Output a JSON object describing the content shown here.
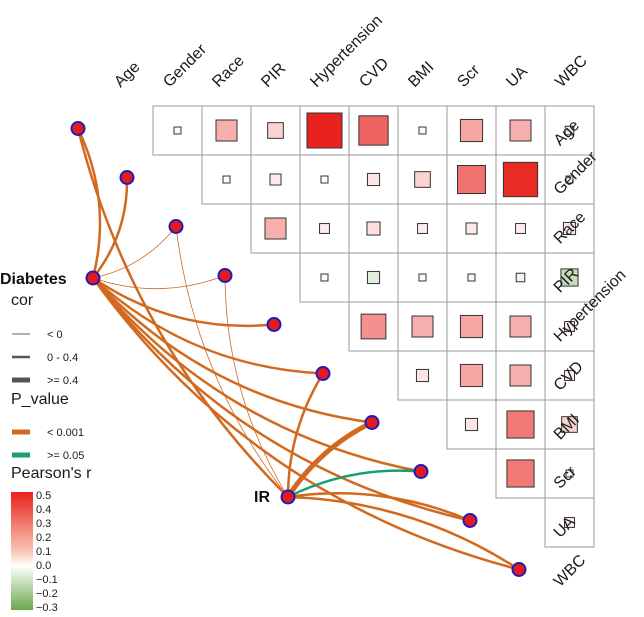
{
  "chart_data": {
    "type": "heatmap",
    "title": "",
    "variables": [
      "Age",
      "Gender",
      "Race",
      "PIR",
      "Hypertension",
      "CVD",
      "BMI",
      "Scr",
      "UA",
      "WBC"
    ],
    "heatmap_r": [
      [
        null,
        0.02,
        0.18,
        0.1,
        0.5,
        0.35,
        0.01,
        0.2,
        0.18,
        0.03
      ],
      [
        null,
        null,
        0.01,
        0.05,
        0.01,
        0.06,
        0.1,
        0.32,
        0.48,
        0.02
      ],
      [
        null,
        null,
        null,
        0.18,
        0.04,
        0.07,
        0.04,
        0.05,
        0.04,
        0.06
      ],
      [
        null,
        null,
        null,
        null,
        0.01,
        -0.06,
        0.01,
        0.02,
        0.03,
        -0.12
      ],
      [
        null,
        null,
        null,
        null,
        null,
        0.25,
        0.18,
        0.2,
        0.18,
        0.04
      ],
      [
        null,
        null,
        null,
        null,
        null,
        null,
        0.06,
        0.2,
        0.18,
        0.04
      ],
      [
        null,
        null,
        null,
        null,
        null,
        null,
        null,
        0.06,
        0.3,
        0.1
      ],
      [
        null,
        null,
        null,
        null,
        null,
        null,
        null,
        null,
        0.3,
        0.01
      ],
      [
        null,
        null,
        null,
        null,
        null,
        null,
        null,
        null,
        null,
        0.04
      ]
    ],
    "mantel_nodes": {
      "diabetes": "Diabetes",
      "ir": "IR"
    },
    "mantel_links": [
      {
        "from": "Diabetes",
        "to": "Age",
        "cor": "0 - 0.4",
        "p": "< 0.001"
      },
      {
        "from": "Diabetes",
        "to": "Gender",
        "cor": "0 - 0.4",
        "p": "< 0.001"
      },
      {
        "from": "Diabetes",
        "to": "Race",
        "cor": "< 0",
        "p": "< 0.001"
      },
      {
        "from": "Diabetes",
        "to": "PIR",
        "cor": "< 0",
        "p": "< 0.001"
      },
      {
        "from": "Diabetes",
        "to": "Hypertension",
        "cor": "0 - 0.4",
        "p": "< 0.001"
      },
      {
        "from": "Diabetes",
        "to": "CVD",
        "cor": "0 - 0.4",
        "p": "< 0.001"
      },
      {
        "from": "Diabetes",
        "to": "BMI",
        "cor": "0 - 0.4",
        "p": "< 0.001"
      },
      {
        "from": "Diabetes",
        "to": "Scr",
        "cor": "0 - 0.4",
        "p": "< 0.001"
      },
      {
        "from": "Diabetes",
        "to": "UA",
        "cor": "0 - 0.4",
        "p": "< 0.001"
      },
      {
        "from": "Diabetes",
        "to": "WBC",
        "cor": "0 - 0.4",
        "p": "< 0.001"
      },
      {
        "from": "IR",
        "to": "Age",
        "cor": "0 - 0.4",
        "p": "< 0.001"
      },
      {
        "from": "IR",
        "to": "Race",
        "cor": "< 0",
        "p": "< 0.001"
      },
      {
        "from": "IR",
        "to": "PIR",
        "cor": "< 0",
        "p": "< 0.001"
      },
      {
        "from": "IR",
        "to": "CVD",
        "cor": "0 - 0.4",
        "p": "< 0.001"
      },
      {
        "from": "IR",
        "to": "BMI",
        "cor": ">= 0.4",
        "p": "< 0.001"
      },
      {
        "from": "IR",
        "to": "Scr",
        "cor": "0 - 0.4",
        "p": ">= 0.05"
      },
      {
        "from": "IR",
        "to": "UA",
        "cor": "0 - 0.4",
        "p": "< 0.001"
      },
      {
        "from": "IR",
        "to": "WBC",
        "cor": "0 - 0.4",
        "p": "< 0.001"
      }
    ],
    "legend": {
      "cor_title": "cor",
      "cor_items": [
        "< 0",
        "0 - 0.4",
        ">= 0.4"
      ],
      "p_title": "P_value",
      "p_items": [
        "< 0.001",
        ">= 0.05"
      ],
      "p_colors": [
        "#d2691e",
        "#1b9e77"
      ],
      "pearson_title": "Pearson's r",
      "pearson_ticks": [
        "0.5",
        "0.4",
        "0.3",
        "0.2",
        "0.1",
        "0.0",
        "−0.1",
        "−0.2",
        "−0.3"
      ],
      "range": [
        -0.3,
        0.5
      ]
    }
  },
  "colors": {
    "link_sig": "#d2691e",
    "link_ns": "#1b9e77",
    "node_fill": "#e41a1c",
    "node_stroke": "#1d1db8",
    "grid": "#9a9a9a"
  }
}
